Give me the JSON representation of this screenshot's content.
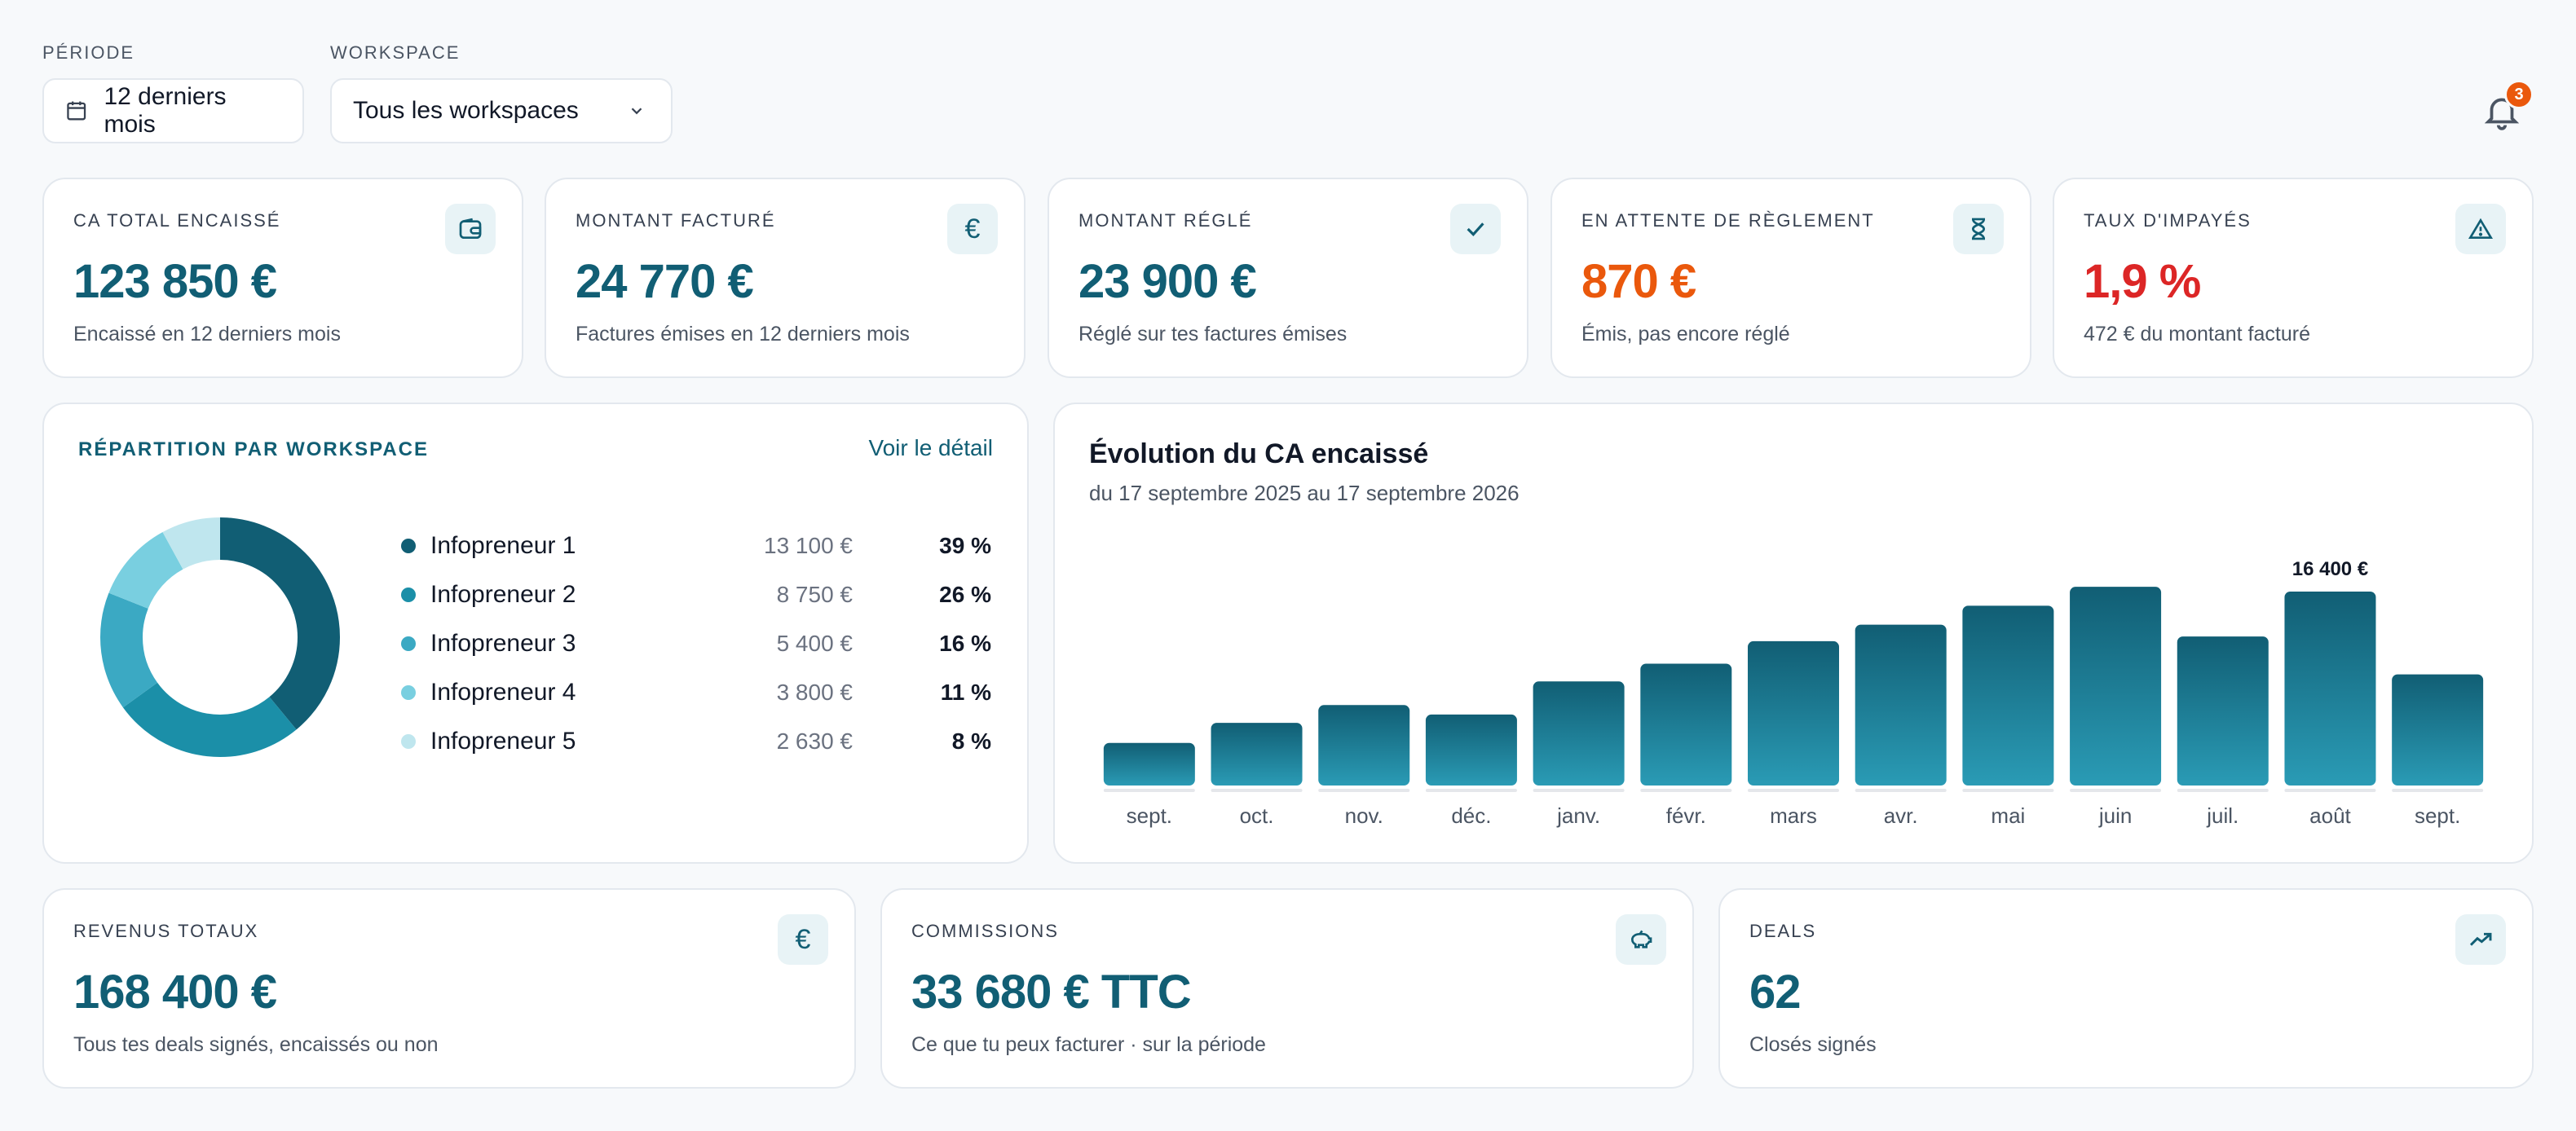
{
  "filters": {
    "period": {
      "label": "PÉRIODE",
      "value": "12 derniers mois"
    },
    "workspace": {
      "label": "WORKSPACE",
      "value": "Tous les workspaces"
    }
  },
  "notifications": {
    "count": "3"
  },
  "kpis": [
    {
      "label": "CA TOTAL ENCAISSÉ",
      "value": "123 850 €",
      "sub": "Encaissé en 12 derniers mois",
      "icon": "wallet-icon",
      "tone": "primary"
    },
    {
      "label": "MONTANT FACTURÉ",
      "value": "24 770 €",
      "sub": "Factures émises en 12 derniers mois",
      "icon": "euro-icon",
      "tone": "primary"
    },
    {
      "label": "MONTANT RÉGLÉ",
      "value": "23 900 €",
      "sub": "Réglé sur tes factures émises",
      "icon": "check-icon",
      "tone": "primary"
    },
    {
      "label": "EN ATTENTE DE RÈGLEMENT",
      "value": "870 €",
      "sub": "Émis, pas encore réglé",
      "icon": "hourglass-icon",
      "tone": "orange"
    },
    {
      "label": "TAUX D'IMPAYÉS",
      "value": "1,9 %",
      "sub": "472 € du montant facturé",
      "icon": "warning-icon",
      "tone": "red"
    }
  ],
  "repartition": {
    "title": "RÉPARTITION PAR WORKSPACE",
    "link": "Voir le détail",
    "items": [
      {
        "name": "Infopreneur 1",
        "amount": "13 100 €",
        "pct": "39 %",
        "share": 39,
        "color": "#115e74"
      },
      {
        "name": "Infopreneur 2",
        "amount": "8 750 €",
        "pct": "26 %",
        "share": 26,
        "color": "#1b8fa8"
      },
      {
        "name": "Infopreneur 3",
        "amount": "5 400 €",
        "pct": "16 %",
        "share": 16,
        "color": "#3ba9c3"
      },
      {
        "name": "Infopreneur 4",
        "amount": "3 800 €",
        "pct": "11 %",
        "share": 11,
        "color": "#79cfe0"
      },
      {
        "name": "Infopreneur 5",
        "amount": "2 630 €",
        "pct": "8 %",
        "share": 8,
        "color": "#bfe6ee"
      }
    ]
  },
  "evolution": {
    "title": "Évolution du CA encaissé",
    "subtitle": "du 17 septembre 2025 au 17 septembre 2026"
  },
  "chart_data": {
    "type": "bar",
    "title": "Évolution du CA encaissé",
    "subtitle": "du 17 septembre 2025 au 17 septembre 2026",
    "categories": [
      "sept.",
      "oct.",
      "nov.",
      "déc.",
      "janv.",
      "févr.",
      "mars",
      "avr.",
      "mai",
      "juin",
      "juil.",
      "août",
      "sept."
    ],
    "values": [
      3600,
      5300,
      6800,
      6000,
      8800,
      10300,
      12200,
      13600,
      15200,
      16800,
      12600,
      16400,
      9400
    ],
    "annotation": {
      "index": 11,
      "label": "16 400 €"
    },
    "ylim": [
      0,
      17500
    ],
    "grid": false
  },
  "totals": [
    {
      "label": "REVENUS TOTAUX",
      "value": "168 400 €",
      "sub": "Tous tes deals signés, encaissés ou non",
      "icon": "euro-icon"
    },
    {
      "label": "COMMISSIONS",
      "value": "33 680 € TTC",
      "sub": "Ce que tu peux facturer · sur la période",
      "icon": "piggy-bank-icon"
    },
    {
      "label": "DEALS",
      "value": "62",
      "sub": "Closés signés",
      "icon": "trending-up-icon"
    }
  ]
}
